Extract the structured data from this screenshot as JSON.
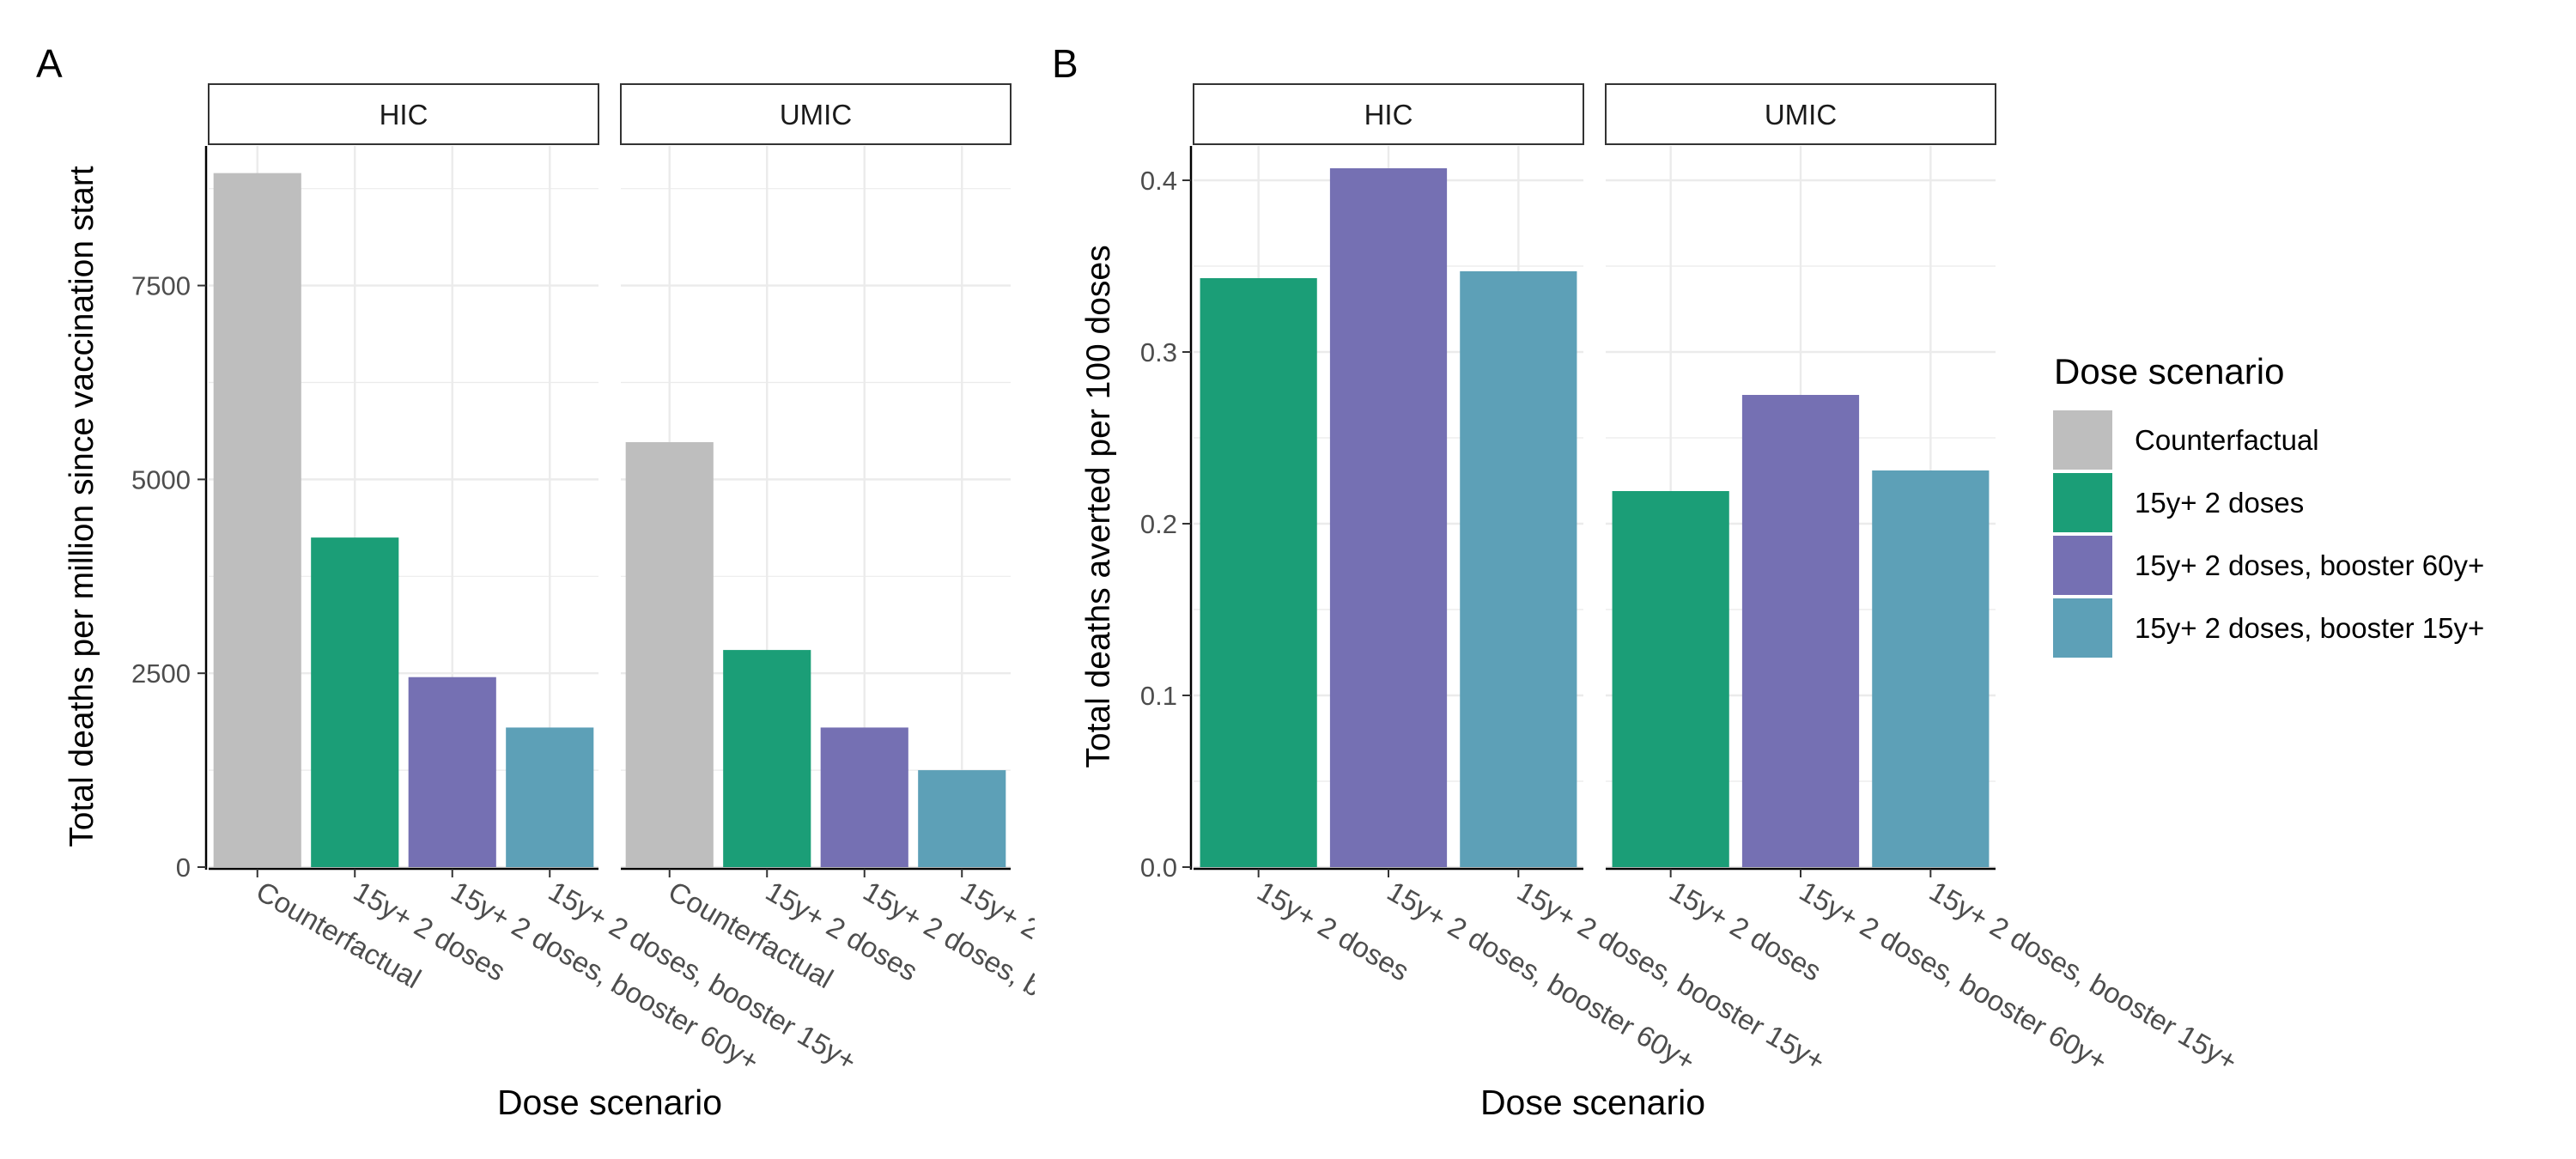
{
  "colors": {
    "Counterfactual": "#bebebe",
    "15y+ 2 doses": "#1b9e77",
    "15y+ 2 doses, booster 60y+": "#7570b3",
    "15y+ 2 doses, booster 15y+": "#5da0b7"
  },
  "legend": {
    "title": "Dose scenario",
    "items": [
      "Counterfactual",
      "15y+ 2 doses",
      "15y+ 2 doses, booster 60y+",
      "15y+ 2 doses, booster 15y+"
    ]
  },
  "chart_data": [
    {
      "type": "bar",
      "panel_tag": "A",
      "xlabel": "Dose scenario",
      "ylabel": "Total deaths per million since vaccination start",
      "ylim": [
        0,
        9300
      ],
      "yticks": [
        0,
        2500,
        5000,
        7500
      ],
      "ytick_labels": [
        "0",
        "2500",
        "5000",
        "7500"
      ],
      "grid": true,
      "categories": [
        "Counterfactual",
        "15y+ 2 doses",
        "15y+ 2 doses, booster 60y+",
        "15y+ 2 doses, booster 15y+"
      ],
      "facets": [
        {
          "label": "HIC",
          "values": [
            8950,
            4250,
            2450,
            1800
          ]
        },
        {
          "label": "UMIC",
          "values": [
            5480,
            2800,
            1800,
            1250
          ]
        }
      ]
    },
    {
      "type": "bar",
      "panel_tag": "B",
      "xlabel": "Dose scenario",
      "ylabel": "Total deaths averted per 100 doses",
      "ylim": [
        0,
        0.42
      ],
      "yticks": [
        0,
        0.1,
        0.2,
        0.3,
        0.4
      ],
      "ytick_labels": [
        "0.0",
        "0.1",
        "0.2",
        "0.3",
        "0.4"
      ],
      "grid": true,
      "categories": [
        "15y+ 2 doses",
        "15y+ 2 doses, booster 60y+",
        "15y+ 2 doses, booster 15y+"
      ],
      "facets": [
        {
          "label": "HIC",
          "values": [
            0.343,
            0.407,
            0.347
          ]
        },
        {
          "label": "UMIC",
          "values": [
            0.219,
            0.275,
            0.231
          ]
        }
      ]
    }
  ]
}
